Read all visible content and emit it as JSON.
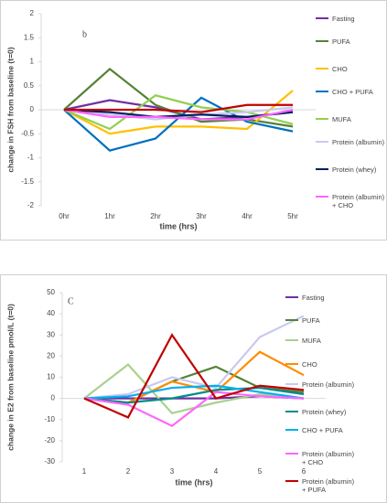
{
  "chart_data": [
    {
      "type": "line",
      "annotation": "b",
      "y_label": "change in FSH from baseline (t=0)",
      "x_label": "time (hrs)",
      "categories": [
        "0hr",
        "1hr",
        "2hr",
        "3hr",
        "4hr",
        "5hr"
      ],
      "ylim": [
        -2,
        2
      ],
      "yticks": [
        -2,
        -1.5,
        -1,
        -0.5,
        0,
        0.5,
        1,
        1.5,
        2
      ],
      "grid": false,
      "series": [
        {
          "name": "Fasting",
          "color": "#7030a0",
          "values": [
            0,
            0.2,
            0.05,
            -0.2,
            -0.15,
            -0.05
          ]
        },
        {
          "name": "PUFA",
          "color": "#548235",
          "values": [
            0,
            0.85,
            0.1,
            -0.25,
            -0.2,
            -0.35
          ]
        },
        {
          "name": "CHO",
          "color": "#ffc000",
          "values": [
            0,
            -0.5,
            -0.35,
            -0.35,
            -0.4,
            0.4
          ]
        },
        {
          "name": "CHO + PUFA",
          "color": "#0070c0",
          "values": [
            0,
            -0.85,
            -0.6,
            0.25,
            -0.25,
            -0.45
          ]
        },
        {
          "name": "MUFA",
          "color": "#92d050",
          "values": [
            0,
            -0.4,
            0.3,
            0.05,
            -0.05,
            -0.3
          ]
        },
        {
          "name": "Protein (albumin)",
          "color": "#c9c9f0",
          "values": [
            0,
            -0.1,
            -0.2,
            -0.1,
            -0.05,
            0.05
          ]
        },
        {
          "name": "Protein (whey)",
          "color": "#002060",
          "values": [
            0,
            -0.05,
            -0.15,
            -0.1,
            -0.15,
            -0.05
          ]
        },
        {
          "name": "Protein (albumin) + CHO",
          "color": "#ff66ff",
          "values": [
            0,
            -0.15,
            -0.15,
            -0.2,
            -0.2,
            0
          ]
        },
        {
          "color": "#c00000",
          "values": [
            0,
            0,
            0,
            -0.05,
            0.1,
            0.1
          ]
        }
      ]
    },
    {
      "type": "line",
      "annotation": "C",
      "y_label": "change in E2  from baseline pmol/L (t=0)",
      "x_label": "time (hrs)",
      "categories": [
        "1",
        "2",
        "3",
        "4",
        "5",
        "6"
      ],
      "ylim": [
        -30,
        50
      ],
      "yticks": [
        -30,
        -20,
        -10,
        0,
        10,
        20,
        30,
        40,
        50
      ],
      "grid": false,
      "series": [
        {
          "name": "Fasting",
          "color": "#7030a0",
          "values": [
            0,
            0,
            0,
            0,
            1,
            0
          ]
        },
        {
          "name": "PUFA",
          "color": "#548235",
          "values": [
            0,
            -2,
            8,
            15,
            5,
            3
          ]
        },
        {
          "name": "MUFA",
          "color": "#a9d18e",
          "values": [
            0,
            16,
            -7,
            -2,
            2,
            0
          ]
        },
        {
          "name": "CHO",
          "color": "#ff8c00",
          "values": [
            0,
            -2,
            8,
            3,
            22,
            11
          ]
        },
        {
          "name": "Protein (albumin)",
          "color": "#c9c9f0",
          "values": [
            0,
            2,
            10,
            5,
            29,
            39
          ]
        },
        {
          "name": "Protein (whey)",
          "color": "#008b8b",
          "values": [
            0,
            -2,
            0,
            4,
            5,
            2
          ]
        },
        {
          "name": "CHO + PUFA",
          "color": "#00b0f0",
          "values": [
            0,
            1,
            5,
            6,
            3,
            0
          ]
        },
        {
          "name": "Protein (albumin) + CHO",
          "color": "#ff66ff",
          "values": [
            0,
            -3,
            -13,
            3,
            1,
            0
          ]
        },
        {
          "name": "Protein (albumin) + PUFA",
          "color": "#c00000",
          "values": [
            0,
            -9,
            30,
            0,
            6,
            4
          ]
        }
      ]
    }
  ]
}
